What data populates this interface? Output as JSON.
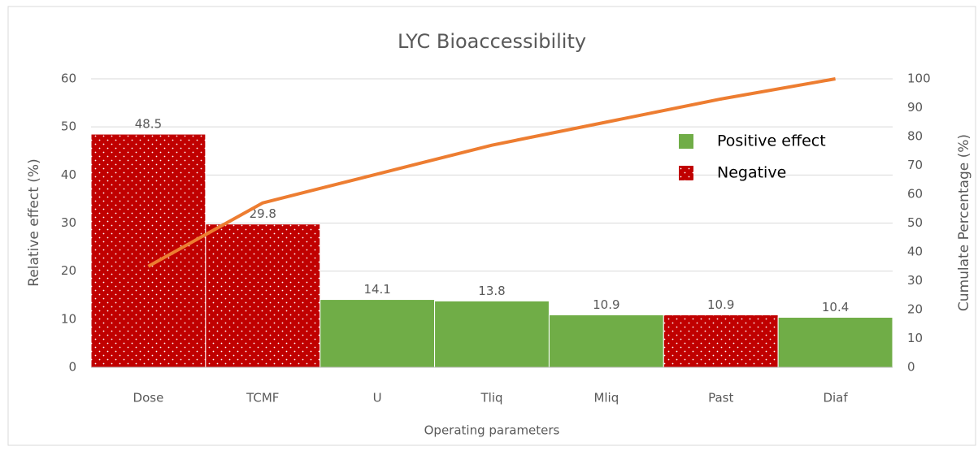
{
  "chart_data": {
    "type": "pareto",
    "title": "LYC Bioaccessibility",
    "x_label": "Operating parameters",
    "y_label": "Relative effect (%)",
    "y2_label": "Cumulate Percentage (%)",
    "categories": [
      "Dose",
      "TCMF",
      "U",
      "Tliq",
      "Mliq",
      "Past",
      "Diaf"
    ],
    "values": [
      48.5,
      29.8,
      14.1,
      13.8,
      10.9,
      10.9,
      10.4
    ],
    "bar_colors": [
      "#c00000",
      "#c00000",
      "#70ad47",
      "#70ad47",
      "#70ad47",
      "#c00000",
      "#70ad47"
    ],
    "legend": [
      {
        "name": "Positive effect",
        "color": "#70ad47"
      },
      {
        "name": "Negative",
        "color": "#c00000",
        "pattern": "dots"
      }
    ],
    "line": {
      "color": "#ed7d31",
      "axis": "y2",
      "values": [
        35,
        57,
        67,
        77,
        85,
        93,
        100
      ]
    },
    "ylim": [
      0,
      60
    ],
    "yticks": [
      0,
      10,
      20,
      30,
      40,
      50,
      60
    ],
    "y2lim": [
      0,
      100
    ],
    "y2ticks": [
      0,
      10,
      20,
      30,
      40,
      50,
      60,
      70,
      80,
      90,
      100
    ],
    "grid": true
  }
}
